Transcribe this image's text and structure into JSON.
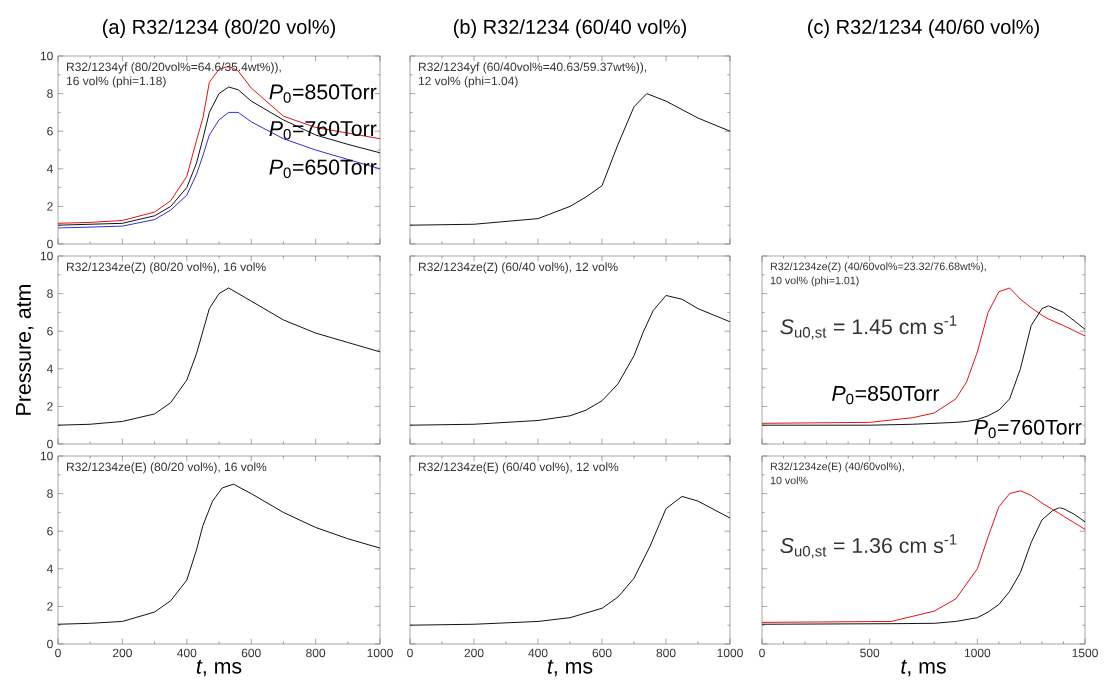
{
  "chart_data": [
    {
      "type": "line",
      "title": "(a) R32/1234 (80/20 vol%)",
      "xlim": [
        0,
        1000
      ],
      "ylim": [
        0,
        10
      ],
      "xticks": [
        0,
        200,
        400,
        600,
        800,
        1000
      ],
      "yticks": [
        0,
        2,
        4,
        6,
        8,
        10
      ],
      "tick_labels": "y",
      "annotations": [
        "R32/1234yf (80/20vol%=64.6/35.4wt%)),",
        "16 vol% (phi=1.18)"
      ],
      "x": [
        0,
        100,
        200,
        300,
        350,
        400,
        430,
        450,
        470,
        500,
        530,
        560,
        600,
        700,
        800,
        900,
        1000
      ],
      "series": [
        {
          "name": "*P*$_{0}$=850Torr",
          "color": "#e00000",
          "values": [
            1.1,
            1.15,
            1.25,
            1.7,
            2.3,
            3.6,
            5.5,
            6.7,
            8.6,
            9.3,
            9.45,
            9.2,
            8.3,
            6.8,
            6.2,
            5.9,
            5.6
          ]
        },
        {
          "name": "*P*$_{0}$=760Torr",
          "color": "#000000",
          "values": [
            1.0,
            1.05,
            1.1,
            1.5,
            2.0,
            3.0,
            4.3,
            5.6,
            7.0,
            8.0,
            8.35,
            8.2,
            7.6,
            6.6,
            5.8,
            5.3,
            4.85
          ]
        },
        {
          "name": "*P*$_{0}$=650Torr",
          "color": "#2020d0",
          "values": [
            0.85,
            0.9,
            0.95,
            1.3,
            1.8,
            2.6,
            3.7,
            4.7,
            5.8,
            6.6,
            7.0,
            7.0,
            6.5,
            5.6,
            5.0,
            4.5,
            4.0
          ]
        }
      ]
    },
    {
      "type": "line",
      "title": "(b) R32/1234 (60/40 vol%)",
      "xlim": [
        0,
        1000
      ],
      "ylim": [
        0,
        10
      ],
      "xticks": [
        0,
        200,
        400,
        600,
        800,
        1000
      ],
      "yticks": [
        0,
        2,
        4,
        6,
        8,
        10
      ],
      "tick_labels": false,
      "annotations": [
        "R32/1234yf (60/40vol%=40.63/59.37wt%)),",
        "12 vol% (phi=1.04)"
      ],
      "x": [
        0,
        200,
        400,
        500,
        550,
        600,
        650,
        700,
        740,
        800,
        900,
        1000
      ],
      "series": [
        {
          "color": "#000000",
          "values": [
            1.0,
            1.05,
            1.35,
            2.0,
            2.5,
            3.1,
            5.3,
            7.3,
            8.0,
            7.6,
            6.7,
            6.0
          ]
        }
      ]
    },
    {
      "type": "line",
      "xlim": [
        0,
        1000
      ],
      "ylim": [
        0,
        10
      ],
      "xticks": [
        0,
        200,
        400,
        600,
        800,
        1000
      ],
      "yticks": [
        0,
        2,
        4,
        6,
        8,
        10
      ],
      "tick_labels": "y",
      "ylabel": "Pressure, atm",
      "annotations": [
        "R32/1234ze(Z) (80/20 vol%), 16 vol%"
      ],
      "x": [
        0,
        100,
        200,
        300,
        350,
        400,
        430,
        450,
        470,
        500,
        530,
        600,
        700,
        800,
        900,
        1000
      ],
      "series": [
        {
          "color": "#000000",
          "values": [
            1.0,
            1.05,
            1.2,
            1.6,
            2.2,
            3.4,
            4.8,
            6.0,
            7.2,
            8.0,
            8.3,
            7.6,
            6.6,
            5.9,
            5.4,
            4.9
          ]
        }
      ]
    },
    {
      "type": "line",
      "xlim": [
        0,
        1000
      ],
      "ylim": [
        0,
        10
      ],
      "xticks": [
        0,
        200,
        400,
        600,
        800,
        1000
      ],
      "yticks": [
        0,
        2,
        4,
        6,
        8,
        10
      ],
      "tick_labels": false,
      "annotations": [
        "R32/1234ze(Z) (60/40 vol%), 12 vol%"
      ],
      "x": [
        0,
        200,
        400,
        500,
        550,
        600,
        650,
        700,
        730,
        760,
        800,
        850,
        900,
        1000
      ],
      "series": [
        {
          "color": "#000000",
          "values": [
            1.0,
            1.05,
            1.25,
            1.5,
            1.8,
            2.3,
            3.2,
            4.7,
            6.0,
            7.1,
            7.9,
            7.7,
            7.2,
            6.5
          ]
        }
      ]
    },
    {
      "type": "line",
      "title": "(c) R32/1234 (40/60 vol%)",
      "xlim": [
        0,
        1500
      ],
      "ylim": [
        0,
        10
      ],
      "xticks": [
        0,
        500,
        1000,
        1500
      ],
      "yticks": [
        0,
        2,
        4,
        6,
        8,
        10
      ],
      "tick_labels": false,
      "annotations": [
        "R32/1234ze(Z) (40/60vol%=23.32/76.68wt%),",
        "10 vol% (phi=1.01)",
        "*S*$_{u0,st}$ = 1.45 cm s$^{-1}$"
      ],
      "x": [
        0,
        500,
        700,
        800,
        900,
        950,
        1000,
        1050,
        1100,
        1150,
        1200,
        1250,
        1300,
        1330,
        1400,
        1500
      ],
      "series": [
        {
          "name": "*P*$_{0}$=850Torr",
          "color": "#e00000",
          "values": [
            1.1,
            1.15,
            1.4,
            1.65,
            2.4,
            3.3,
            4.9,
            7.0,
            8.1,
            8.3,
            7.7,
            7.25,
            6.85,
            6.65,
            6.3,
            5.75
          ]
        },
        {
          "name": "*P*$_{0}$=760Torr",
          "color": "#000000",
          "values": [
            1.0,
            1.0,
            1.05,
            1.1,
            1.15,
            1.2,
            1.3,
            1.5,
            1.8,
            2.4,
            4.0,
            6.3,
            7.2,
            7.35,
            7.0,
            6.1
          ]
        }
      ]
    },
    {
      "type": "line",
      "xlim": [
        0,
        1000
      ],
      "ylim": [
        0,
        10
      ],
      "xticks": [
        0,
        200,
        400,
        600,
        800,
        1000
      ],
      "yticks": [
        0,
        2,
        4,
        6,
        8,
        10
      ],
      "xlabel": "*t*, ms",
      "annotations": [
        "R32/1234ze(E) (80/20 vol%), 16 vol%"
      ],
      "x": [
        0,
        100,
        200,
        300,
        350,
        400,
        430,
        450,
        480,
        510,
        545,
        600,
        700,
        800,
        900,
        1000
      ],
      "series": [
        {
          "color": "#000000",
          "values": [
            1.05,
            1.1,
            1.2,
            1.7,
            2.3,
            3.4,
            5.0,
            6.3,
            7.6,
            8.3,
            8.5,
            8.0,
            7.0,
            6.2,
            5.6,
            5.1
          ]
        }
      ]
    },
    {
      "type": "line",
      "xlim": [
        0,
        1000
      ],
      "ylim": [
        0,
        10
      ],
      "xticks": [
        0,
        200,
        400,
        600,
        800,
        1000
      ],
      "yticks": [
        0,
        2,
        4,
        6,
        8,
        10
      ],
      "tick_labels": "x",
      "xlabel": "*t*, ms",
      "annotations": [
        "R32/1234ze(E) (60/40 vol%), 12 vol%"
      ],
      "x": [
        0,
        200,
        400,
        500,
        600,
        650,
        700,
        750,
        780,
        800,
        850,
        900,
        1000
      ],
      "series": [
        {
          "color": "#000000",
          "values": [
            1.0,
            1.05,
            1.2,
            1.4,
            1.9,
            2.5,
            3.5,
            5.2,
            6.4,
            7.2,
            7.85,
            7.6,
            6.7
          ]
        }
      ]
    },
    {
      "type": "line",
      "xlim": [
        0,
        1500
      ],
      "ylim": [
        0,
        10
      ],
      "xticks": [
        0,
        500,
        1000,
        1500
      ],
      "yticks": [
        0,
        2,
        4,
        6,
        8,
        10
      ],
      "tick_labels": "x",
      "xlabel": "*t*, ms",
      "annotations": [
        "R32/1234ze(E) (40/60vol%),",
        "10 vol%",
        "*S*$_{u0,st}$ = 1.36 cm s$^{-1}$"
      ],
      "x": [
        0,
        600,
        800,
        900,
        1000,
        1050,
        1100,
        1150,
        1200,
        1250,
        1300,
        1350,
        1380,
        1400,
        1450,
        1500
      ],
      "series": [
        {
          "color": "#e00000",
          "values": [
            1.15,
            1.2,
            1.75,
            2.4,
            4.0,
            5.7,
            7.3,
            8.0,
            8.15,
            7.9,
            7.5,
            7.15,
            6.95,
            6.8,
            6.45,
            6.1
          ]
        },
        {
          "color": "#000000",
          "values": [
            1.05,
            1.08,
            1.1,
            1.2,
            1.4,
            1.7,
            2.1,
            2.8,
            3.8,
            5.4,
            6.6,
            7.1,
            7.25,
            7.2,
            6.9,
            6.5
          ]
        }
      ]
    }
  ]
}
